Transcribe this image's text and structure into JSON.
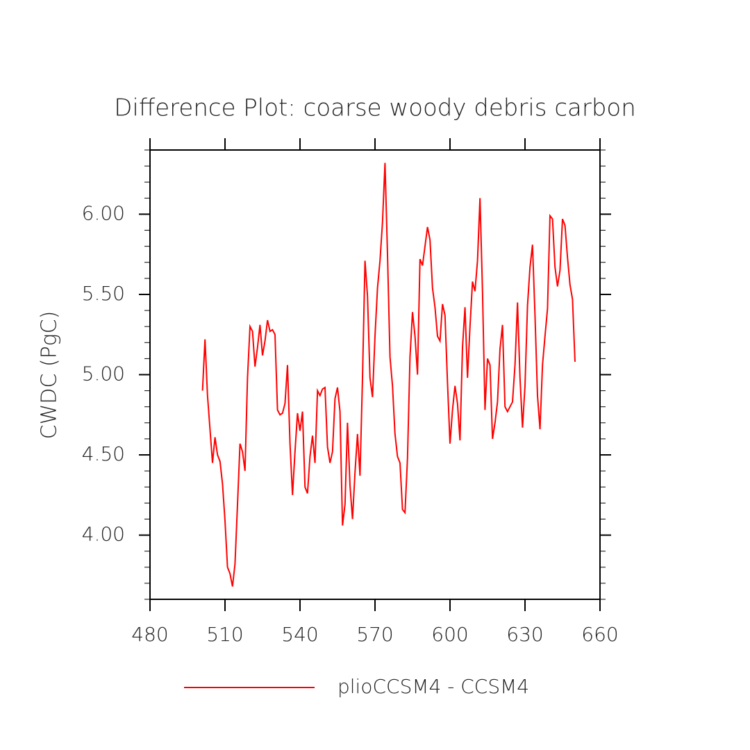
{
  "chart_data": {
    "type": "line",
    "title": "Difference Plot: coarse woody debris carbon",
    "y_label": "CWDC  (PgC)",
    "x": [
      501,
      502,
      503,
      504,
      505,
      506,
      507,
      508,
      509,
      510,
      511,
      512,
      513,
      514,
      515,
      516,
      517,
      518,
      519,
      520,
      521,
      522,
      523,
      524,
      525,
      526,
      527,
      528,
      529,
      530,
      531,
      532,
      533,
      534,
      535,
      536,
      537,
      538,
      539,
      540,
      541,
      542,
      543,
      544,
      545,
      546,
      547,
      548,
      549,
      550,
      551,
      552,
      553,
      554,
      555,
      556,
      557,
      558,
      559,
      560,
      561,
      562,
      563,
      564,
      565,
      566,
      567,
      568,
      569,
      570,
      571,
      572,
      573,
      574,
      575,
      576,
      577,
      578,
      579,
      580,
      581,
      582,
      583,
      584,
      585,
      586,
      587,
      588,
      589,
      590,
      591,
      592,
      593,
      594,
      595,
      596,
      597,
      598,
      599,
      600,
      601,
      602,
      603,
      604,
      605,
      606,
      607,
      608,
      609,
      610,
      611,
      612,
      613,
      614,
      615,
      616,
      617,
      618,
      619,
      620,
      621,
      622,
      623,
      624,
      625,
      626,
      627,
      628,
      629,
      630,
      631,
      632,
      633,
      634,
      635,
      636,
      637,
      638,
      639,
      640,
      641,
      642,
      643,
      644,
      645,
      646,
      647,
      648,
      649,
      650
    ],
    "series": [
      {
        "name": "plioCCSM4 - CCSM4",
        "color": "#ff0000",
        "values": [
          4.9,
          5.22,
          4.87,
          4.66,
          4.45,
          4.61,
          4.5,
          4.46,
          4.32,
          4.09,
          3.8,
          3.76,
          3.68,
          3.82,
          4.19,
          4.57,
          4.52,
          4.4,
          4.98,
          5.3,
          5.27,
          5.05,
          5.17,
          5.31,
          5.12,
          5.21,
          5.34,
          5.27,
          5.28,
          5.25,
          4.78,
          4.75,
          4.76,
          4.82,
          5.06,
          4.57,
          4.25,
          4.52,
          4.76,
          4.65,
          4.77,
          4.3,
          4.26,
          4.49,
          4.62,
          4.45,
          4.9,
          4.87,
          4.91,
          4.92,
          4.55,
          4.45,
          4.52,
          4.85,
          4.92,
          4.77,
          4.06,
          4.19,
          4.7,
          4.31,
          4.1,
          4.39,
          4.63,
          4.37,
          4.98,
          5.71,
          5.49,
          4.98,
          4.86,
          5.24,
          5.54,
          5.71,
          5.95,
          6.32,
          5.75,
          5.11,
          4.93,
          4.63,
          4.49,
          4.45,
          4.16,
          4.14,
          4.48,
          5.11,
          5.39,
          5.24,
          5.0,
          5.72,
          5.68,
          5.8,
          5.92,
          5.84,
          5.54,
          5.42,
          5.24,
          5.21,
          5.44,
          5.37,
          4.95,
          4.57,
          4.78,
          4.93,
          4.82,
          4.59,
          5.17,
          5.42,
          4.98,
          5.3,
          5.58,
          5.52,
          5.71,
          6.1,
          5.52,
          4.78,
          5.1,
          5.06,
          4.6,
          4.7,
          4.83,
          5.16,
          5.31,
          4.8,
          4.77,
          4.8,
          4.83,
          5.06,
          5.45,
          4.98,
          4.67,
          4.93,
          5.43,
          5.67,
          5.81,
          5.37,
          4.87,
          4.66,
          5.06,
          5.24,
          5.41,
          5.99,
          5.97,
          5.67,
          5.55,
          5.65,
          5.97,
          5.93,
          5.73,
          5.56,
          5.47,
          5.08
        ]
      }
    ],
    "xlim": [
      480,
      660
    ],
    "xticks": [
      480,
      510,
      540,
      570,
      600,
      630,
      660
    ],
    "ylim": [
      3.6,
      6.4
    ],
    "yticks": [
      {
        "value": 4,
        "label": "4.00"
      },
      {
        "value": 4.5,
        "label": "4.50"
      },
      {
        "value": 5,
        "label": "5.00"
      },
      {
        "value": 5.5,
        "label": "5.50"
      },
      {
        "value": 6,
        "label": "6.00"
      }
    ],
    "yminorticks": [
      3.6,
      3.7,
      3.8,
      3.9,
      4.1,
      4.2,
      4.3,
      4.4,
      4.6,
      4.7,
      4.8,
      4.9,
      5.1,
      5.2,
      5.3,
      5.4,
      5.6,
      5.7,
      5.8,
      5.9,
      6.1,
      6.2,
      6.3,
      6.4
    ],
    "legend": "bottom"
  }
}
